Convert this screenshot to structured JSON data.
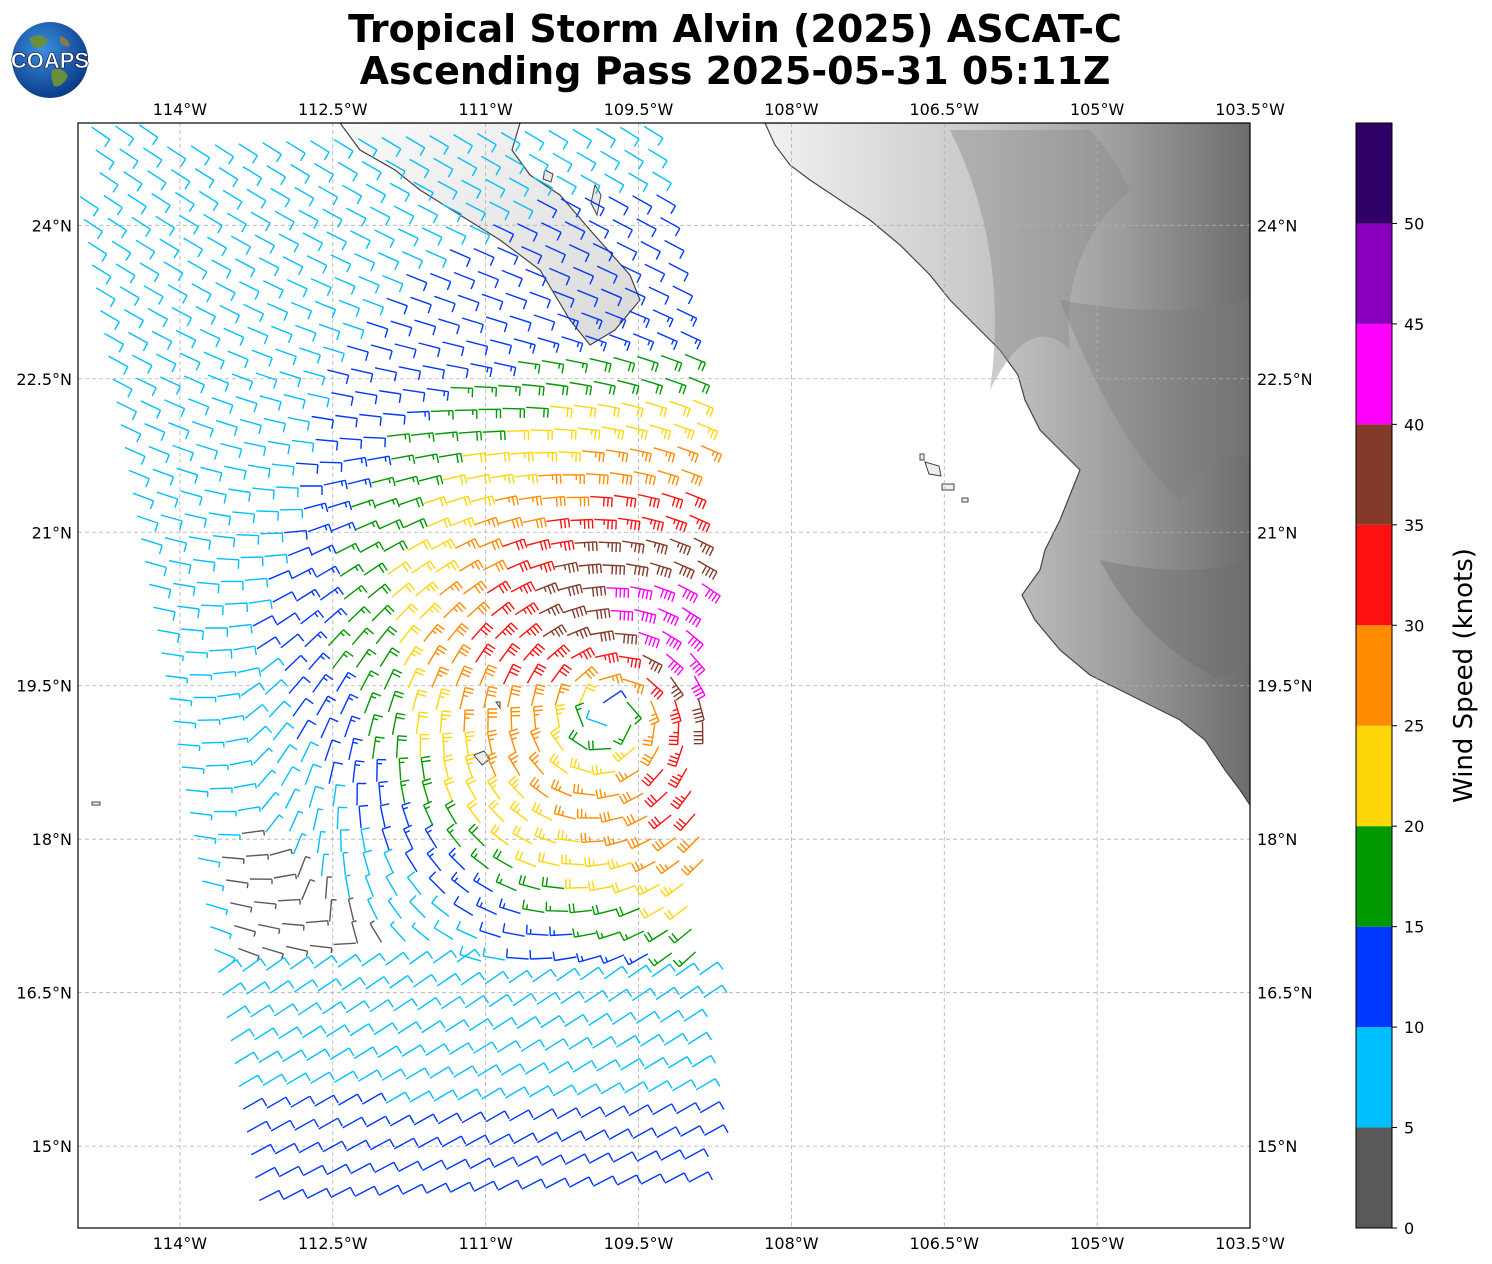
{
  "header": {
    "title_line1": "Tropical Storm Alvin (2025) ASCAT-C",
    "title_line2": "Ascending Pass 2025-05-31 05:11Z",
    "logo_text": "COAPS"
  },
  "map": {
    "lon_ticks": [
      "114°W",
      "112.5°W",
      "111°W",
      "109.5°W",
      "108°W",
      "106.5°W",
      "105°W",
      "103.5°W"
    ],
    "lat_ticks": [
      "24°N",
      "22.5°N",
      "21°N",
      "19.5°N",
      "18°N",
      "16.5°N",
      "15°N"
    ],
    "lon_range": [
      -115,
      -103.5
    ],
    "lat_range": [
      14.2,
      25.0
    ],
    "gridlines": true,
    "land_shading": "grayscale elevation",
    "storm_center": {
      "lon": -109.7,
      "lat": 19.3
    }
  },
  "colorbar": {
    "label": "Wind Speed (knots)",
    "tick_labels": [
      "0",
      "5",
      "10",
      "15",
      "20",
      "25",
      "30",
      "35",
      "40",
      "45",
      "50"
    ],
    "bins": [
      {
        "min": 0,
        "max": 5,
        "color": "#595959"
      },
      {
        "min": 5,
        "max": 10,
        "color": "#00bfff"
      },
      {
        "min": 10,
        "max": 15,
        "color": "#0038ff"
      },
      {
        "min": 15,
        "max": 20,
        "color": "#009900"
      },
      {
        "min": 20,
        "max": 25,
        "color": "#ffd60a"
      },
      {
        "min": 25,
        "max": 30,
        "color": "#ff8c00"
      },
      {
        "min": 30,
        "max": 35,
        "color": "#ff1010"
      },
      {
        "min": 35,
        "max": 40,
        "color": "#833a28"
      },
      {
        "min": 40,
        "max": 45,
        "color": "#ff00ff"
      },
      {
        "min": 45,
        "max": 50,
        "color": "#8800bb"
      },
      {
        "min": 50,
        "max": 55,
        "color": "#2e0066"
      }
    ]
  }
}
